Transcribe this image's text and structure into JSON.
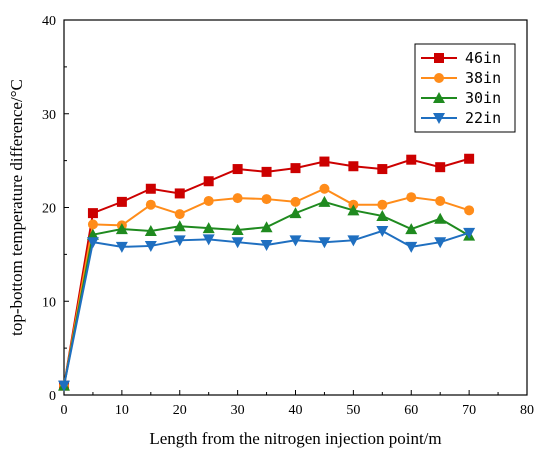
{
  "chart_data": {
    "type": "line",
    "xlabel": "Length from the nitrogen injection point/m",
    "ylabel": "top-bottom temperature difference/°C",
    "xlim": [
      0,
      80
    ],
    "ylim": [
      0,
      40
    ],
    "xticks": [
      0,
      10,
      20,
      30,
      40,
      50,
      60,
      70,
      80
    ],
    "yticks": [
      0,
      10,
      20,
      30,
      40
    ],
    "x": [
      0,
      5,
      10,
      15,
      20,
      25,
      30,
      35,
      40,
      45,
      50,
      55,
      60,
      65,
      70
    ],
    "legend_position": "top-right",
    "grid": false,
    "series": [
      {
        "name": "46in",
        "color": "#cc0000",
        "marker": "square",
        "values": [
          1.0,
          19.4,
          20.6,
          22.0,
          21.5,
          22.8,
          24.1,
          23.8,
          24.2,
          24.9,
          24.4,
          24.1,
          25.1,
          24.3,
          25.2
        ]
      },
      {
        "name": "38in",
        "color": "#ff8c1a",
        "marker": "circle",
        "values": [
          1.0,
          18.2,
          18.1,
          20.3,
          19.3,
          20.7,
          21.0,
          20.9,
          20.6,
          22.0,
          20.3,
          20.3,
          21.1,
          20.7,
          19.7
        ]
      },
      {
        "name": "30in",
        "color": "#1f8a1f",
        "marker": "triangle-up",
        "values": [
          1.0,
          17.1,
          17.7,
          17.5,
          18.0,
          17.8,
          17.6,
          17.9,
          19.4,
          20.6,
          19.7,
          19.1,
          17.7,
          18.8,
          17.0
        ]
      },
      {
        "name": "22in",
        "color": "#1f6fc0",
        "marker": "triangle-down",
        "values": [
          1.0,
          16.3,
          15.8,
          15.9,
          16.5,
          16.6,
          16.3,
          16.0,
          16.5,
          16.3,
          16.5,
          17.5,
          15.8,
          16.3,
          17.3
        ]
      }
    ]
  }
}
